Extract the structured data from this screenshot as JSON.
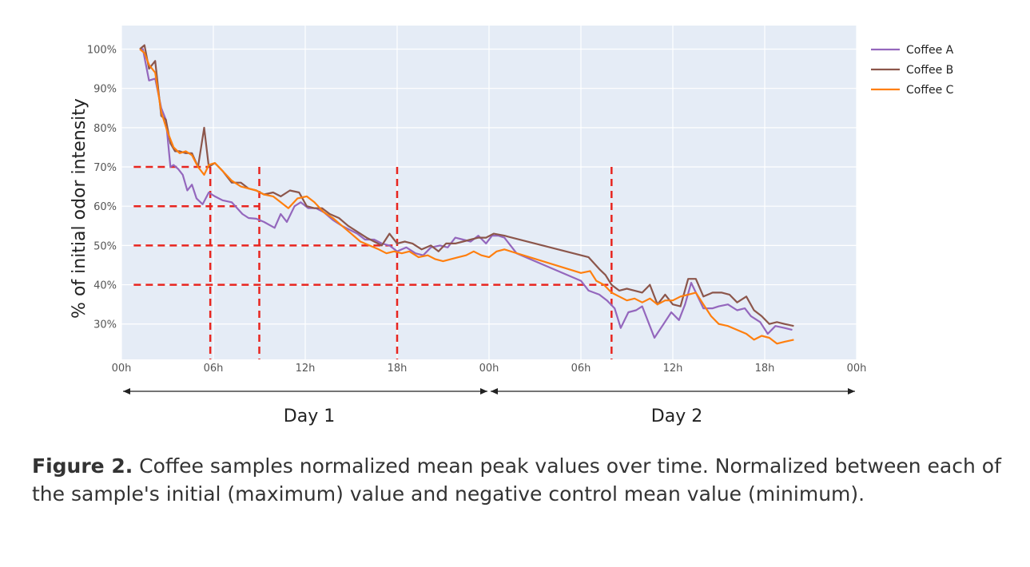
{
  "chart_data": {
    "type": "line",
    "title": "",
    "ylabel": "% of initial odor intensity",
    "xlabel": "",
    "xlim": [
      0,
      48
    ],
    "ylim": [
      21,
      106
    ],
    "x_ticks": [
      {
        "value": 0,
        "label": "00h"
      },
      {
        "value": 6,
        "label": "06h"
      },
      {
        "value": 12,
        "label": "12h"
      },
      {
        "value": 18,
        "label": "18h"
      },
      {
        "value": 24,
        "label": "00h"
      },
      {
        "value": 30,
        "label": "06h"
      },
      {
        "value": 36,
        "label": "12h"
      },
      {
        "value": 42,
        "label": "18h"
      },
      {
        "value": 48,
        "label": "00h"
      }
    ],
    "y_ticks": [
      {
        "value": 30,
        "label": "30%"
      },
      {
        "value": 40,
        "label": "40%"
      },
      {
        "value": 50,
        "label": "50%"
      },
      {
        "value": 60,
        "label": "60%"
      },
      {
        "value": 70,
        "label": "70%"
      },
      {
        "value": 80,
        "label": "80%"
      },
      {
        "value": 90,
        "label": "90%"
      },
      {
        "value": 100,
        "label": "100%"
      }
    ],
    "grid": true,
    "legend_position": "top-right",
    "series": [
      {
        "name": "Coffee A",
        "color": "#9467bd",
        "x": [
          1.2,
          1.4,
          1.8,
          2.2,
          2.6,
          2.9,
          3.2,
          3.4,
          3.7,
          4,
          4.3,
          4.6,
          4.9,
          5.3,
          5.7,
          6.1,
          6.6,
          7.2,
          7.9,
          8.3,
          8.8,
          9.3,
          10,
          10.4,
          10.8,
          11.3,
          11.7,
          12.2,
          12.7,
          13.2,
          13.8,
          14.4,
          14.9,
          15.4,
          15.9,
          16.5,
          17,
          17.5,
          18,
          18.6,
          19.2,
          19.7,
          20.2,
          20.8,
          21.3,
          21.8,
          22.3,
          22.8,
          23.3,
          23.8,
          24.2,
          24.6,
          25,
          25.8,
          30,
          30.5,
          31.2,
          31.7,
          32.2,
          32.6,
          33.1,
          33.6,
          34,
          34.8,
          35.4,
          35.9,
          36.4,
          36.8,
          37.2,
          38,
          38.6,
          39,
          39.6,
          40.2,
          40.7,
          41.1,
          41.7,
          42.2,
          42.7,
          43.3,
          43.8
        ],
        "y": [
          100,
          100,
          92,
          92.5,
          85,
          82,
          70,
          70.5,
          69.5,
          68,
          64,
          65.5,
          62,
          60.5,
          63.5,
          62.5,
          61.5,
          61,
          58,
          57,
          56.8,
          56,
          54.5,
          58,
          56,
          60,
          61,
          59.5,
          59.5,
          58.5,
          56.5,
          55,
          54,
          53,
          51.5,
          51.5,
          50.5,
          50,
          48.5,
          49.5,
          48,
          47.5,
          49.5,
          50,
          49.5,
          52,
          51.5,
          51,
          52.5,
          50.5,
          52.5,
          52.5,
          52,
          48,
          41,
          38.5,
          37.5,
          36,
          34,
          29,
          33,
          33.5,
          34.5,
          26.5,
          30,
          33,
          31,
          35,
          40.5,
          34,
          34,
          34.5,
          35,
          33.5,
          34,
          32,
          30.5,
          27.5,
          29.5,
          29,
          28.5
        ]
      },
      {
        "name": "Coffee B",
        "color": "#8c564b",
        "x": [
          1.2,
          1.5,
          1.8,
          2.2,
          2.6,
          2.9,
          3.2,
          3.5,
          3.8,
          4.2,
          4.6,
          5,
          5.4,
          5.7,
          6.1,
          6.6,
          7.2,
          7.8,
          8.3,
          8.8,
          9.3,
          9.9,
          10.4,
          11,
          11.6,
          12.1,
          12.6,
          13.1,
          13.6,
          14.2,
          14.8,
          15.4,
          16,
          16.5,
          17,
          17.5,
          18,
          18.5,
          19,
          19.6,
          20.2,
          20.7,
          21.2,
          21.8,
          22.3,
          22.8,
          23.3,
          23.8,
          24.3,
          25,
          30.5,
          31.2,
          31.6,
          32,
          32.5,
          33,
          33.5,
          34,
          34.5,
          35,
          35.5,
          36,
          36.5,
          37,
          37.5,
          38,
          38.6,
          39.2,
          39.7,
          40.2,
          40.8,
          41.3,
          41.8,
          42.3,
          42.8,
          43.3,
          43.9
        ],
        "y": [
          100,
          101,
          95,
          97,
          83,
          82,
          76,
          74,
          74,
          73.5,
          73.5,
          70,
          80,
          70,
          71,
          69,
          66,
          66,
          64.5,
          64,
          63,
          63.5,
          62.5,
          64,
          63.5,
          60,
          59.5,
          59.5,
          58,
          57,
          55,
          53.5,
          52,
          51,
          50,
          53,
          50.5,
          51,
          50.5,
          49,
          50,
          48.5,
          50.5,
          50.5,
          51,
          51.5,
          52,
          52,
          53,
          52.5,
          47,
          44,
          42.5,
          40,
          38.5,
          39,
          38.5,
          38,
          40,
          35,
          37.5,
          35,
          34.5,
          41.5,
          41.5,
          37,
          38,
          38,
          37.5,
          35.5,
          37,
          33.5,
          32,
          30,
          30.5,
          30,
          29.5
        ]
      },
      {
        "name": "Coffee C",
        "color": "#ff7f0e",
        "x": [
          1.2,
          1.5,
          1.8,
          2.2,
          2.6,
          3,
          3.4,
          3.8,
          4.2,
          4.6,
          5,
          5.4,
          5.7,
          6.1,
          6.6,
          7.2,
          7.8,
          8.3,
          8.8,
          9.3,
          9.9,
          10.4,
          10.9,
          11.5,
          12.1,
          12.6,
          13.2,
          13.8,
          14.4,
          15,
          15.6,
          16.2,
          16.8,
          17.3,
          17.8,
          18.3,
          18.8,
          19.4,
          20,
          20.5,
          21,
          21.5,
          22,
          22.5,
          23,
          23.5,
          24,
          24.5,
          25,
          30,
          30.6,
          31,
          31.5,
          32,
          32.5,
          33,
          33.5,
          34,
          34.5,
          35,
          35.5,
          36,
          36.5,
          37,
          37.5,
          38,
          38.5,
          39,
          39.6,
          40.2,
          40.8,
          41.3,
          41.8,
          42.3,
          42.8,
          43.3,
          43.9
        ],
        "y": [
          100,
          99,
          96,
          94,
          84,
          79,
          75,
          73.5,
          74,
          73,
          70,
          68,
          70.5,
          71,
          69,
          66.5,
          65,
          64.5,
          64,
          63,
          62.5,
          61,
          59.5,
          62,
          62.5,
          61,
          58.5,
          57,
          55,
          53,
          51,
          50,
          49,
          48,
          48.5,
          48,
          48.5,
          47,
          47.5,
          46.5,
          46,
          46.5,
          47,
          47.5,
          48.5,
          47.5,
          47,
          48.5,
          49,
          43,
          43.5,
          41,
          40,
          38,
          37,
          36,
          36.5,
          35.5,
          36.5,
          35,
          36,
          36,
          37,
          37.5,
          38,
          35,
          32,
          30,
          29.5,
          28.5,
          27.5,
          26,
          27,
          26.5,
          25,
          25.5,
          26
        ]
      }
    ],
    "reference_lines": [
      {
        "y": 70,
        "x_start": 0.8,
        "x_end": 5.8
      },
      {
        "y": 60,
        "x_start": 0.8,
        "x_end": 9
      },
      {
        "y": 50,
        "x_start": 0.8,
        "x_end": 18
      },
      {
        "y": 40,
        "x_start": 0.8,
        "x_end": 32
      }
    ],
    "reference_verticals": [
      5.8,
      9,
      18,
      32
    ],
    "day_spans": [
      {
        "label": "Day 1",
        "start": 0,
        "end": 24
      },
      {
        "label": "Day 2",
        "start": 24,
        "end": 48
      }
    ],
    "colors": {
      "plot_bg": "#e5ecf6",
      "grid": "#ffffff",
      "reference": "#e8251f",
      "axis_arrow": "#222222"
    }
  },
  "caption": {
    "lead": "Figure 2.",
    "text": " Coffee samples normalized mean peak values over time. Normalized between each of the sample's initial (maximum) value and negative control mean value (minimum)."
  }
}
